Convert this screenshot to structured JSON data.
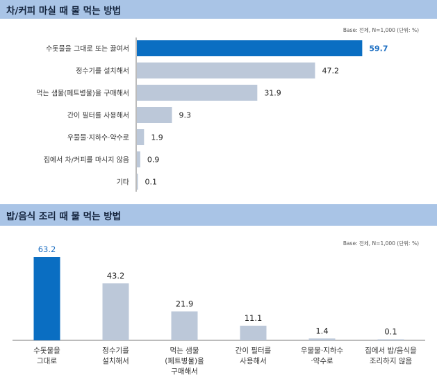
{
  "colors": {
    "highlight": "#0a6ec2",
    "bar": "#bcc8d9",
    "header": "#a9c4e6",
    "axis": "#7a7a7a"
  },
  "chart_data": [
    {
      "type": "bar",
      "orientation": "horizontal",
      "title": "차/커피 마실 때 물 먹는 방법",
      "note": "Base: 전체, N=1,000 (단위: %)",
      "categories": [
        "수돗물을 그대로 또는 끓여서",
        "정수기를 설치해서",
        "먹는 샘물(페트병물)을 구매해서",
        "간이 필터를 사용해서",
        "우물물·지하수·약수로",
        "집에서 차/커피를 마시지 않음",
        "기타"
      ],
      "values": [
        59.7,
        47.2,
        31.9,
        9.3,
        1.9,
        0.9,
        0.1
      ],
      "value_labels": [
        "59.7",
        "47.2",
        "31.9",
        "9.3",
        "1.9",
        "0.9",
        "0.1"
      ],
      "highlight_index": 0,
      "xlim": [
        0,
        60
      ],
      "grid": false
    },
    {
      "type": "bar",
      "orientation": "vertical",
      "title": "밥/음식 조리 때 물 먹는 방법",
      "note": "Base: 전체, N=1,000 (단위: %)",
      "categories": [
        [
          "수돗물을",
          "그대로"
        ],
        [
          "정수기를",
          "설치해서"
        ],
        [
          "먹는 샘물",
          "(페트병물)을",
          "구매해서"
        ],
        [
          "간이 필터를",
          "사용해서"
        ],
        [
          "우물물·지하수",
          "·약수로"
        ],
        [
          "집에서 밥/음식을",
          "조리하지 않음"
        ]
      ],
      "values": [
        63.2,
        43.2,
        21.9,
        11.1,
        1.4,
        0.1
      ],
      "value_labels": [
        "63.2",
        "43.2",
        "21.9",
        "11.1",
        "1.4",
        "0.1"
      ],
      "highlight_index": 0,
      "ylim": [
        0,
        63.2
      ],
      "grid": false
    }
  ]
}
